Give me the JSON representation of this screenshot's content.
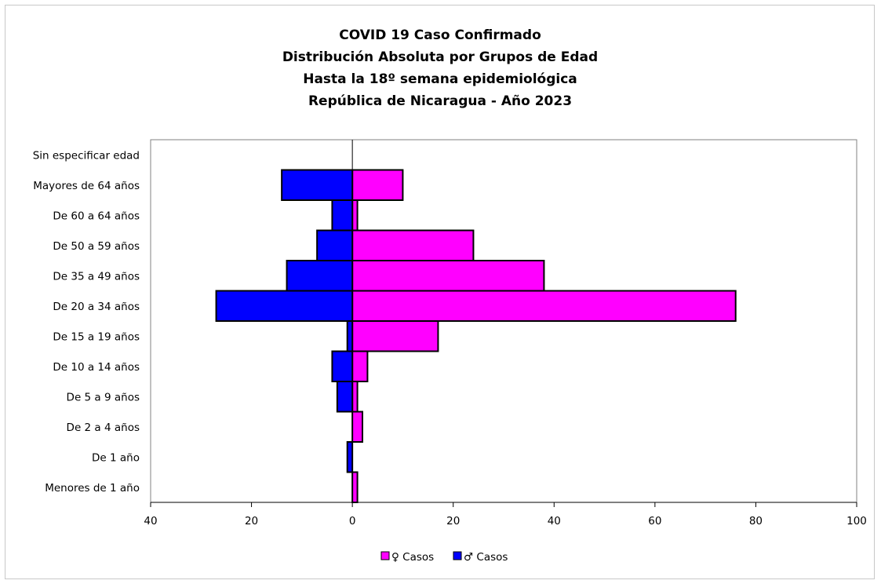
{
  "chart_data": {
    "type": "bar",
    "orientation": "horizontal",
    "title_lines": [
      "COVID 19 Caso Confirmado",
      "Distribución Absoluta por Grupos de Edad",
      "Hasta la 18º semana epidemiológica",
      "República de Nicaragua - Año 2023"
    ],
    "categories": [
      "Sin especificar edad",
      "Mayores de 64 años",
      "De 60 a 64 años",
      "De 50 a 59 años",
      "De 35 a 49 años",
      "De 20 a 34 años",
      "De 15 a 19 años",
      "De 10 a 14 años",
      "De 5 a 9 años",
      "De 2 a 4 años",
      "De 1 año",
      "Menores de 1 año"
    ],
    "series": [
      {
        "name": "♀ Casos",
        "color": "#ff00ff",
        "values": [
          0,
          10,
          1,
          24,
          38,
          76,
          17,
          3,
          1,
          2,
          0,
          1
        ]
      },
      {
        "name": "♂ Casos",
        "color": "#0000ff",
        "values": [
          0,
          14,
          4,
          7,
          13,
          27,
          1,
          4,
          3,
          0,
          1,
          0
        ]
      }
    ],
    "xlim": [
      -40,
      100
    ],
    "x_ticks": [
      -40,
      -20,
      0,
      20,
      40,
      60,
      80,
      100
    ],
    "x_tick_labels": [
      "40",
      "20",
      "0",
      "20",
      "40",
      "60",
      "80",
      "100"
    ],
    "grid": false,
    "legend_position": "bottom"
  }
}
